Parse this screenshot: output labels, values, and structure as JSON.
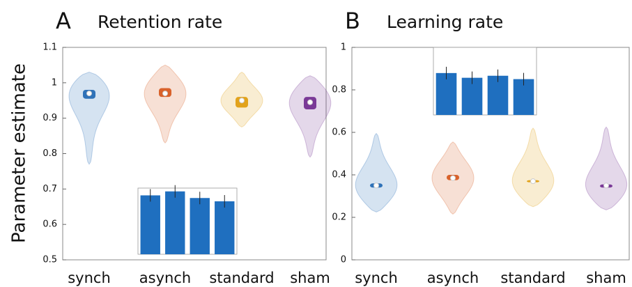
{
  "chart_data": [
    {
      "type": "violin",
      "panel": "A",
      "title": "Retention rate",
      "ylabel": "Parameter estimate",
      "categories": [
        "synch",
        "asynch",
        "standard",
        "sham"
      ],
      "colors": [
        "#2f72b8",
        "#d9622b",
        "#e2a31c",
        "#7a3a97"
      ],
      "medians": [
        0.97,
        0.97,
        0.95,
        0.945
      ],
      "q1": [
        0.955,
        0.96,
        0.93,
        0.925
      ],
      "q3": [
        0.98,
        0.985,
        0.96,
        0.96
      ],
      "mins": [
        0.77,
        0.83,
        0.875,
        0.79
      ],
      "maxs": [
        1.03,
        1.05,
        1.03,
        1.02
      ],
      "ylim": [
        0.5,
        1.1
      ],
      "yticks": [
        0.5,
        0.6,
        0.7,
        0.8,
        0.9,
        1,
        1.1
      ],
      "inset": {
        "type": "bar",
        "values": [
          0.89,
          0.95,
          0.85,
          0.8
        ],
        "color": "#1f6fbf",
        "ylim": [
          0,
          1
        ]
      }
    },
    {
      "type": "violin",
      "panel": "B",
      "title": "Learning rate",
      "categories": [
        "synch",
        "asynch",
        "standard",
        "sham"
      ],
      "colors": [
        "#2f72b8",
        "#d9622b",
        "#e2a31c",
        "#7a3a97"
      ],
      "medians": [
        0.35,
        0.385,
        0.37,
        0.35
      ],
      "q1": [
        0.34,
        0.375,
        0.365,
        0.34
      ],
      "q3": [
        0.36,
        0.4,
        0.375,
        0.355
      ],
      "mins": [
        0.225,
        0.215,
        0.25,
        0.235
      ],
      "maxs": [
        0.595,
        0.555,
        0.62,
        0.625
      ],
      "ylim": [
        0,
        1
      ],
      "yticks": [
        0,
        0.2,
        0.4,
        0.6,
        0.8,
        1
      ],
      "inset": {
        "type": "bar",
        "values": [
          0.62,
          0.55,
          0.58,
          0.53
        ],
        "color": "#1f6fbf",
        "ylim": [
          0,
          1
        ]
      }
    }
  ]
}
